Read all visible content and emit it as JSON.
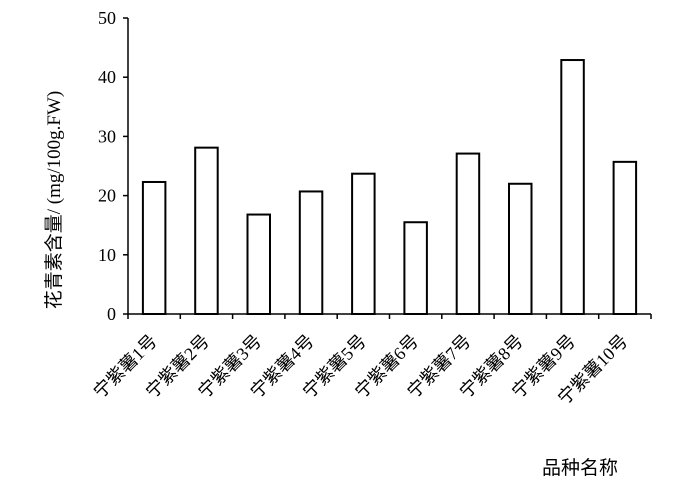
{
  "chart_data": {
    "type": "bar",
    "categories": [
      "宁紫薯1号",
      "宁紫薯2号",
      "宁紫薯3号",
      "宁紫薯4号",
      "宁紫薯5号",
      "宁紫薯6号",
      "宁紫薯7号",
      "宁紫薯8号",
      "宁紫薯9号",
      "宁紫薯10号"
    ],
    "values": [
      22.3,
      28.1,
      16.8,
      20.7,
      23.7,
      15.5,
      27.1,
      22.0,
      42.9,
      25.7
    ],
    "ylabel": "花青素含量/ (mg/100g.FW)",
    "xlabel": "品种名称",
    "ylim": [
      0,
      50
    ],
    "yticks": [
      0,
      10,
      20,
      30,
      40,
      50
    ],
    "grid": false,
    "bar_fill": "#ffffff",
    "bar_stroke": "#000000"
  }
}
